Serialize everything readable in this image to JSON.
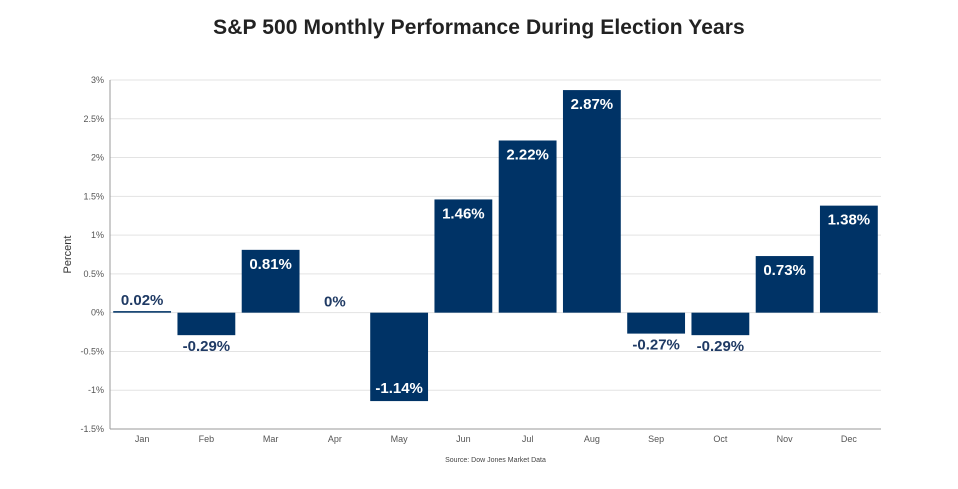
{
  "chart_data": {
    "type": "bar",
    "title": "S&P 500 Monthly Performance During Election Years",
    "xlabel": "",
    "ylabel": "Percent",
    "source": "Source: Dow Jones Market Data",
    "categories": [
      "Jan",
      "Feb",
      "Mar",
      "Apr",
      "May",
      "Jun",
      "Jul",
      "Aug",
      "Sep",
      "Oct",
      "Nov",
      "Dec"
    ],
    "values": [
      0.02,
      -0.29,
      0.81,
      0,
      -1.14,
      1.46,
      2.22,
      2.87,
      -0.27,
      -0.29,
      0.73,
      1.38
    ],
    "data_labels": [
      "0.02%",
      "-0.29%",
      "0.81%",
      "0%",
      "-1.14%",
      "1.46%",
      "2.22%",
      "2.87%",
      "-0.27%",
      "-0.29%",
      "0.73%",
      "1.38%"
    ],
    "ylim": [
      -1.5,
      3
    ],
    "yticks": [
      3,
      2.5,
      2,
      1.5,
      1,
      0.5,
      0,
      -0.5,
      -1,
      -1.5
    ],
    "ytick_labels": [
      "3%",
      "2.5%",
      "2%",
      "1.5%",
      "1%",
      "0.5%",
      "0%",
      "-0.5%",
      "-1%",
      "-1.5%"
    ],
    "grid": true,
    "legend": "none",
    "colors": {
      "bar": "#003366",
      "label_inside": "#ffffff",
      "label_outside": "#1f3a64",
      "grid": "#e3e3e3",
      "axis": "#999999"
    }
  }
}
